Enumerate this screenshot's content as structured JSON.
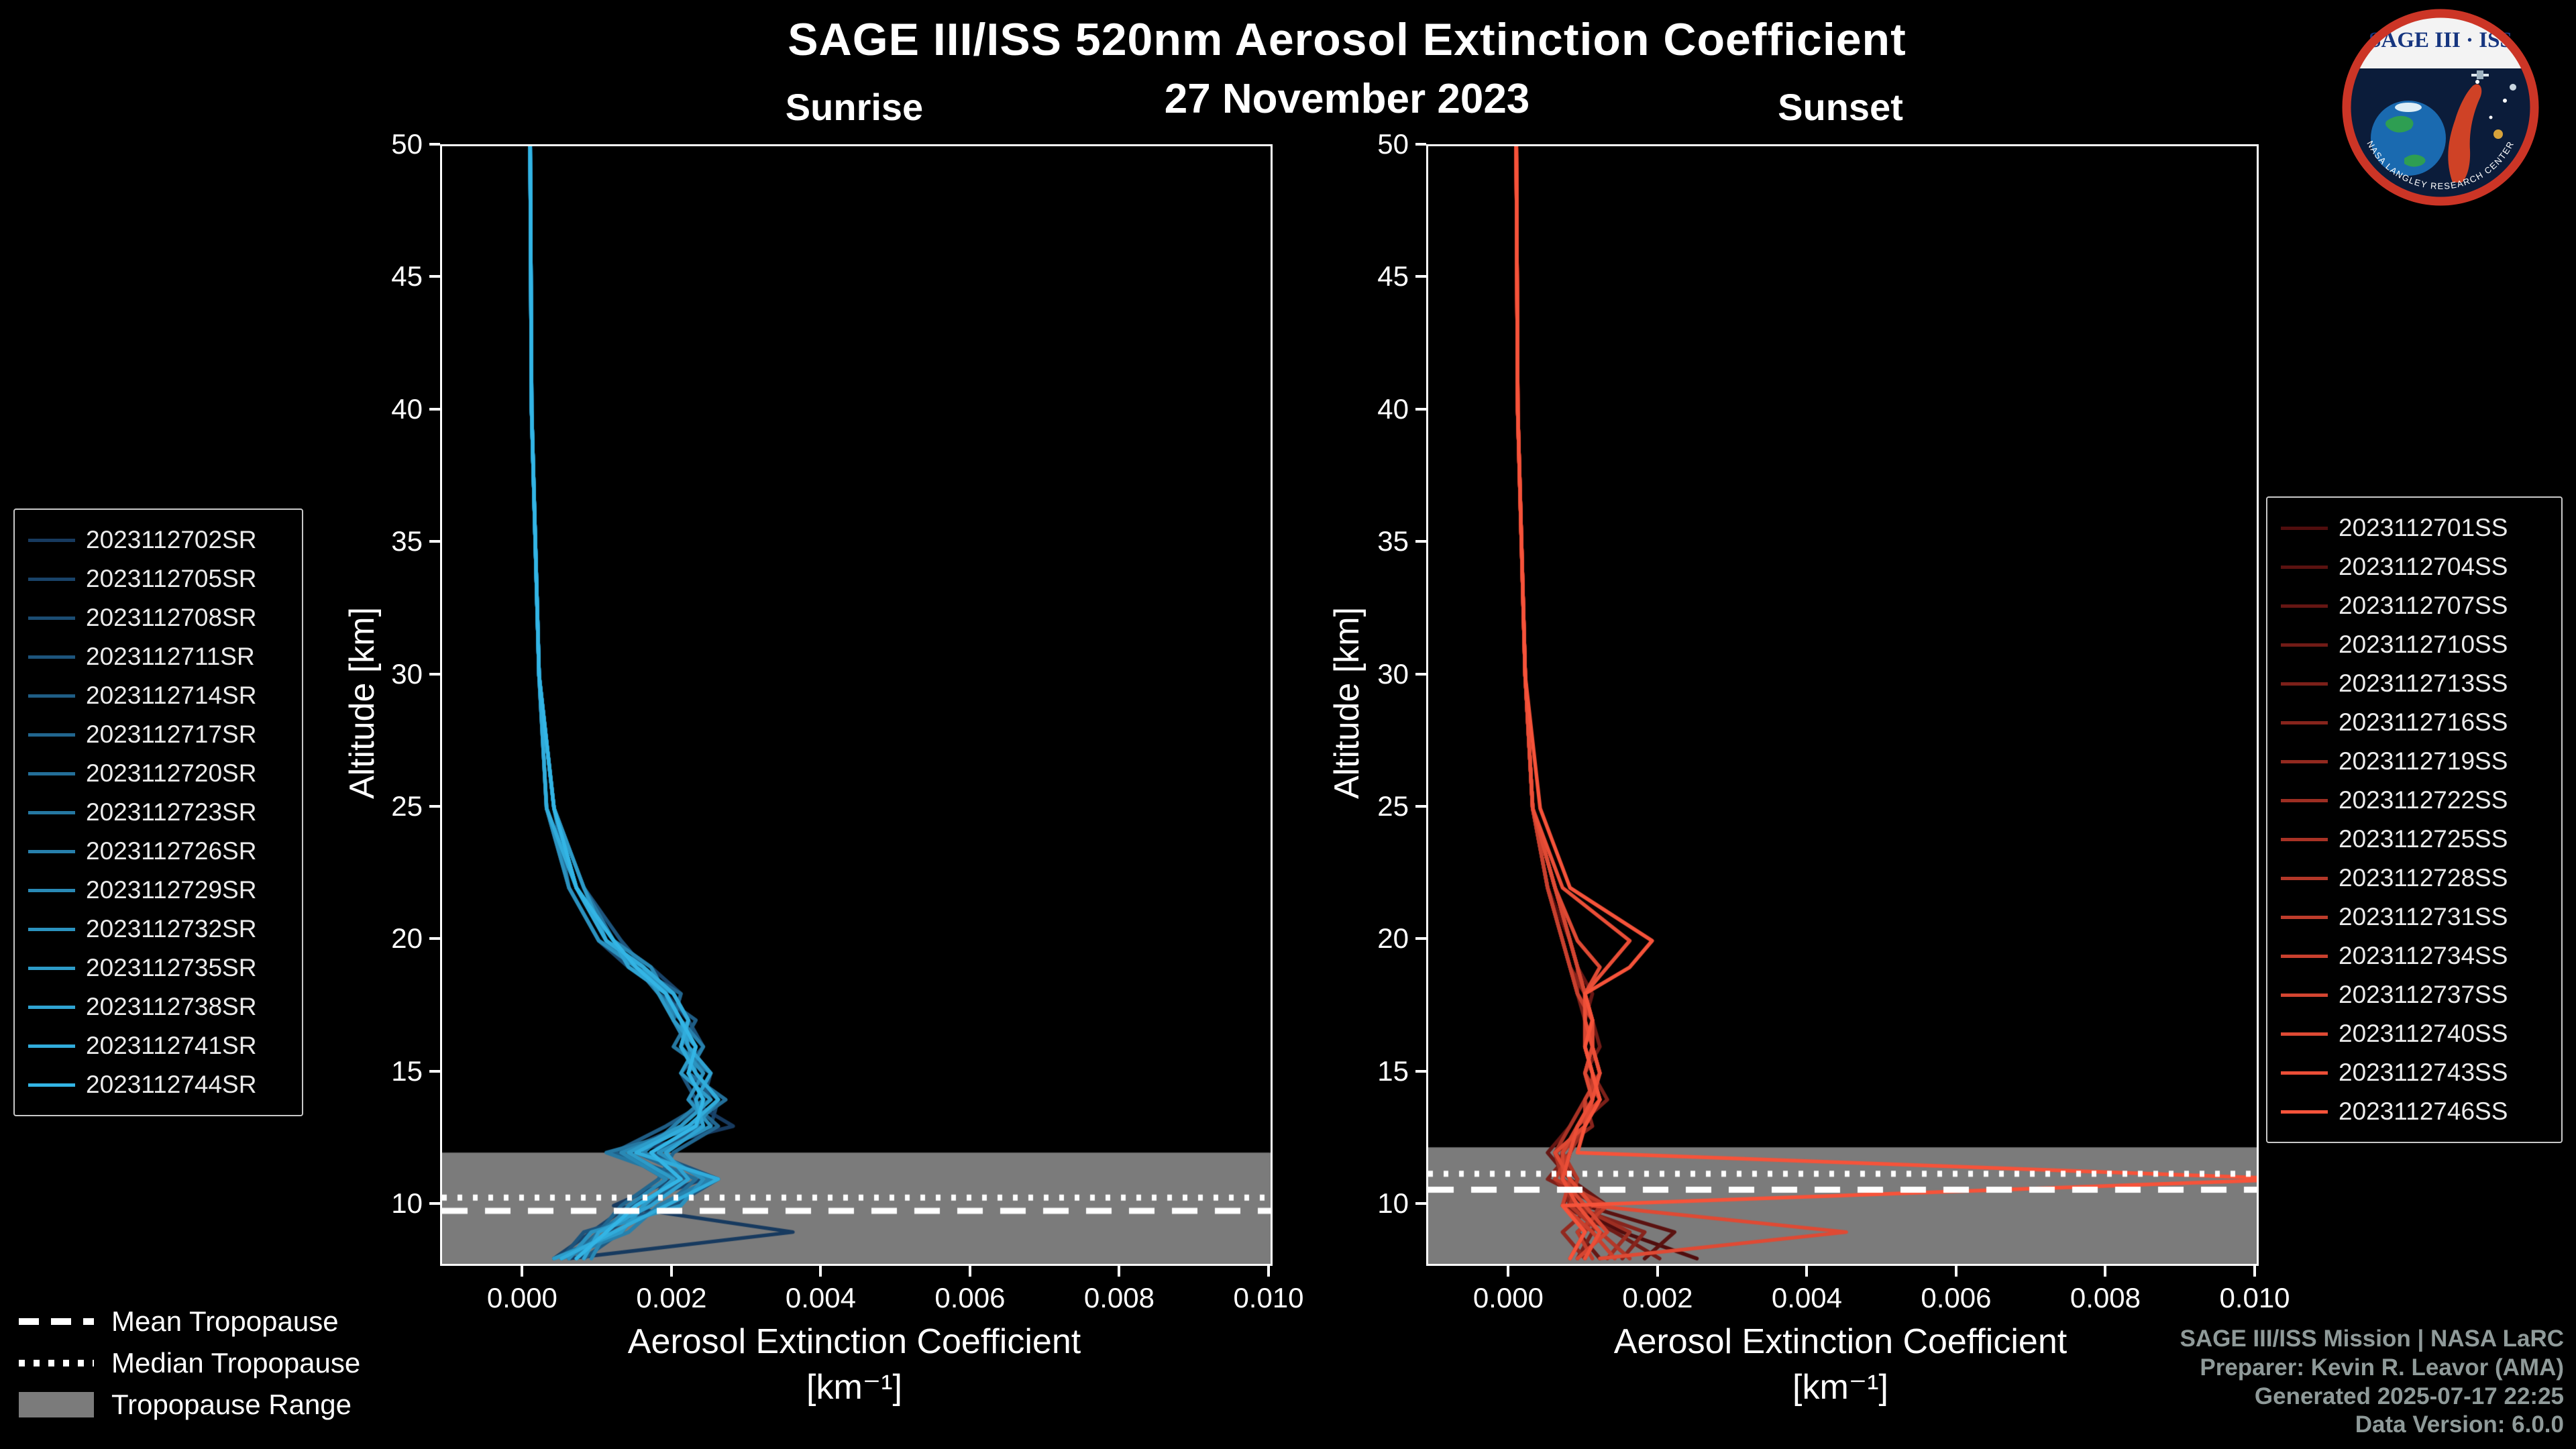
{
  "title": "SAGE III/ISS 520nm Aerosol Extinction Coefficient",
  "date": "27 November 2023",
  "logo": {
    "title": "SAGE III · ISS",
    "arc_text": "NASA LANGLEY RESEARCH CENTER"
  },
  "tropopause_legend": [
    {
      "label": "Mean Tropopause",
      "style": "dashed"
    },
    {
      "label": "Median Tropopause",
      "style": "dotted"
    },
    {
      "label": "Tropopause Range",
      "style": "band"
    }
  ],
  "footer": {
    "line1": "SAGE III/ISS Mission | NASA LaRC",
    "line2": "Preparer: Kevin R. Leavor (AMA)",
    "line3": "Generated 2025-07-17 22:25",
    "line4": "Data Version: 6.0.0"
  },
  "colors": {
    "background": "#000000",
    "axis": "#ffffff",
    "tropopause_band": "#7b7b7b",
    "tropopause_lines": "#ffffff",
    "muted_text": "#8f9a99"
  },
  "chart_data": [
    {
      "id": "sunrise",
      "type": "line",
      "title": "Sunrise",
      "xlabel_line1": "Aerosol Extinction Coefficient",
      "xlabel_line2": "[km⁻¹]",
      "ylabel": "Altitude [km]",
      "grid": false,
      "xlim": [
        -0.0011,
        0.01
      ],
      "ylim": [
        7.8,
        50
      ],
      "xticks": [
        0.0,
        0.002,
        0.004,
        0.006,
        0.008,
        0.01
      ],
      "xtick_labels": [
        "0.000",
        "0.002",
        "0.004",
        "0.006",
        "0.008",
        "0.010"
      ],
      "yticks": [
        10,
        15,
        20,
        25,
        30,
        35,
        40,
        45,
        50
      ],
      "ytick_labels": [
        "10",
        "15",
        "20",
        "25",
        "30",
        "35",
        "40",
        "45",
        "50"
      ],
      "tropopause": {
        "mean_km": 9.8,
        "median_km": 10.3,
        "range_km": [
          7.8,
          12.0
        ]
      },
      "altitudes_km": [
        8,
        9,
        10,
        11,
        12,
        13,
        14,
        15,
        16,
        17,
        18,
        19,
        20,
        22,
        25,
        30,
        40,
        50
      ],
      "series": [
        {
          "name": "2023112702SR",
          "color": "#173A5F",
          "values": [
            0.0006,
            0.0036,
            0.0012,
            0.002,
            0.0014,
            0.0028,
            0.0022,
            0.0024,
            0.0021,
            0.0022,
            0.0019,
            0.0015,
            0.0011,
            0.0007,
            0.0004,
            0.0002,
            0.0001,
            8e-05
          ]
        },
        {
          "name": "2023112705SR",
          "color": "#194369",
          "values": [
            0.0004,
            0.0009,
            0.0014,
            0.0024,
            0.0018,
            0.0025,
            0.0026,
            0.0022,
            0.0023,
            0.002,
            0.0021,
            0.0017,
            0.0012,
            0.0008,
            0.0004,
            0.0002,
            0.0001,
            8e-05
          ]
        },
        {
          "name": "2023112708SR",
          "color": "#1B4C72",
          "values": [
            0.0007,
            0.0011,
            0.0017,
            0.0019,
            0.0013,
            0.0021,
            0.0024,
            0.0025,
            0.0022,
            0.0021,
            0.0019,
            0.0014,
            0.001,
            0.0006,
            0.0003,
            0.0002,
            0.0001,
            8e-05
          ]
        },
        {
          "name": "2023112711SR",
          "color": "#1D547C",
          "values": [
            0.0005,
            0.0008,
            0.002,
            0.0026,
            0.0017,
            0.0024,
            0.0023,
            0.0021,
            0.0024,
            0.0022,
            0.002,
            0.0016,
            0.0013,
            0.0008,
            0.0004,
            0.0002,
            0.0001,
            8e-05
          ]
        },
        {
          "name": "2023112714SR",
          "color": "#1F5D85",
          "values": [
            0.0008,
            0.0013,
            0.0016,
            0.0022,
            0.0012,
            0.0019,
            0.0025,
            0.0023,
            0.0021,
            0.0023,
            0.0018,
            0.0015,
            0.0011,
            0.0007,
            0.0004,
            0.0002,
            0.0001,
            8e-05
          ]
        },
        {
          "name": "2023112717SR",
          "color": "#21668F",
          "values": [
            0.0006,
            0.001,
            0.0013,
            0.0018,
            0.002,
            0.0026,
            0.0022,
            0.0024,
            0.0022,
            0.002,
            0.0021,
            0.0015,
            0.0012,
            0.0007,
            0.0003,
            0.0002,
            0.0001,
            8e-05
          ]
        },
        {
          "name": "2023112720SR",
          "color": "#236F99",
          "values": [
            0.0004,
            0.0012,
            0.0019,
            0.0023,
            0.0015,
            0.0022,
            0.0027,
            0.0022,
            0.0023,
            0.0021,
            0.0019,
            0.0016,
            0.001,
            0.0006,
            0.0004,
            0.0002,
            0.0001,
            8e-05
          ]
        },
        {
          "name": "2023112723SR",
          "color": "#2578A2",
          "values": [
            0.0007,
            0.001,
            0.0015,
            0.0021,
            0.0011,
            0.0024,
            0.0023,
            0.0025,
            0.002,
            0.0022,
            0.002,
            0.0014,
            0.0012,
            0.0008,
            0.0004,
            0.0002,
            0.0001,
            8e-05
          ]
        },
        {
          "name": "2023112726SR",
          "color": "#2780AC",
          "values": [
            0.0005,
            0.0014,
            0.0018,
            0.0025,
            0.0016,
            0.002,
            0.0024,
            0.0022,
            0.0024,
            0.0021,
            0.0018,
            0.0015,
            0.0011,
            0.0007,
            0.0003,
            0.0002,
            0.0001,
            8e-05
          ]
        },
        {
          "name": "2023112729SR",
          "color": "#2989B5",
          "values": [
            0.0009,
            0.0011,
            0.0014,
            0.0019,
            0.0013,
            0.0023,
            0.0026,
            0.0023,
            0.0022,
            0.002,
            0.0019,
            0.0017,
            0.0012,
            0.0007,
            0.0004,
            0.0002,
            0.0001,
            8e-05
          ]
        },
        {
          "name": "2023112732SR",
          "color": "#2B92BF",
          "values": [
            0.0006,
            0.0009,
            0.0021,
            0.0024,
            0.0018,
            0.0025,
            0.0022,
            0.0024,
            0.0021,
            0.0022,
            0.002,
            0.0015,
            0.001,
            0.0006,
            0.0003,
            0.0002,
            0.0001,
            8e-05
          ]
        },
        {
          "name": "2023112735SR",
          "color": "#2D9BC8",
          "values": [
            0.0004,
            0.0013,
            0.0016,
            0.002,
            0.0014,
            0.0021,
            0.0025,
            0.0021,
            0.0023,
            0.002,
            0.0018,
            0.0016,
            0.0011,
            0.0008,
            0.0004,
            0.0002,
            0.0001,
            8e-05
          ]
        },
        {
          "name": "2023112738SR",
          "color": "#2FA3D2",
          "values": [
            0.0008,
            0.001,
            0.0017,
            0.0022,
            0.0019,
            0.0024,
            0.0023,
            0.0025,
            0.0022,
            0.0021,
            0.0019,
            0.0014,
            0.0012,
            0.0007,
            0.0004,
            0.0002,
            0.0001,
            8e-05
          ]
        },
        {
          "name": "2023112741SR",
          "color": "#31ACDB",
          "values": [
            0.0005,
            0.0012,
            0.0019,
            0.0026,
            0.0015,
            0.0022,
            0.0026,
            0.0023,
            0.0021,
            0.0022,
            0.002,
            0.0016,
            0.0011,
            0.0007,
            0.0003,
            0.0002,
            0.0001,
            8e-05
          ]
        },
        {
          "name": "2023112744SR",
          "color": "#33B5E5",
          "values": [
            0.0007,
            0.0011,
            0.0015,
            0.0021,
            0.0017,
            0.0023,
            0.0024,
            0.0022,
            0.0023,
            0.0021,
            0.0019,
            0.0015,
            0.0012,
            0.0007,
            0.0004,
            0.0002,
            0.0001,
            8e-05
          ]
        }
      ]
    },
    {
      "id": "sunset",
      "type": "line",
      "title": "Sunset",
      "xlabel_line1": "Aerosol Extinction Coefficient",
      "xlabel_line2": "[km⁻¹]",
      "ylabel": "Altitude [km]",
      "grid": false,
      "xlim": [
        -0.0011,
        0.01
      ],
      "ylim": [
        7.8,
        50
      ],
      "xticks": [
        0.0,
        0.002,
        0.004,
        0.006,
        0.008,
        0.01
      ],
      "xtick_labels": [
        "0.000",
        "0.002",
        "0.004",
        "0.006",
        "0.008",
        "0.010"
      ],
      "yticks": [
        10,
        15,
        20,
        25,
        30,
        35,
        40,
        45,
        50
      ],
      "ytick_labels": [
        "10",
        "15",
        "20",
        "25",
        "30",
        "35",
        "40",
        "45",
        "50"
      ],
      "tropopause": {
        "mean_km": 10.6,
        "median_km": 11.2,
        "range_km": [
          7.8,
          12.2
        ]
      },
      "altitudes_km": [
        8,
        9,
        10,
        11,
        12,
        13,
        14,
        15,
        16,
        17,
        18,
        19,
        20,
        22,
        25,
        30,
        40,
        50
      ],
      "series": [
        {
          "name": "2023112701SS",
          "color": "#500D0D",
          "values": [
            0.0025,
            0.0015,
            0.0008,
            0.0007,
            0.0008,
            0.001,
            0.0011,
            0.001,
            0.0011,
            0.001,
            0.001,
            0.0009,
            0.0008,
            0.0005,
            0.0003,
            0.0002,
            0.0001,
            8e-05
          ]
        },
        {
          "name": "2023112704SS",
          "color": "#5B1210",
          "values": [
            0.0018,
            0.0022,
            0.001,
            0.0006,
            0.0007,
            0.0009,
            0.0012,
            0.0011,
            0.001,
            0.0011,
            0.0009,
            0.0008,
            0.0007,
            0.0005,
            0.0003,
            0.0002,
            0.0001,
            8e-05
          ]
        },
        {
          "name": "2023112707SS",
          "color": "#661613",
          "values": [
            0.0012,
            0.0009,
            0.0013,
            0.0008,
            0.0005,
            0.0008,
            0.001,
            0.0012,
            0.0011,
            0.001,
            0.0011,
            0.0009,
            0.0008,
            0.0006,
            0.0003,
            0.0002,
            0.0001,
            8e-05
          ]
        },
        {
          "name": "2023112710SS",
          "color": "#711B16",
          "values": [
            0.002,
            0.0014,
            0.0007,
            0.0009,
            0.0006,
            0.001,
            0.0011,
            0.001,
            0.0012,
            0.0011,
            0.001,
            0.0008,
            0.0007,
            0.0005,
            0.0003,
            0.0002,
            0.0001,
            8e-05
          ]
        },
        {
          "name": "2023112713SS",
          "color": "#7C2019",
          "values": [
            0.0009,
            0.0011,
            0.0012,
            0.0005,
            0.0008,
            0.0009,
            0.0013,
            0.0011,
            0.001,
            0.001,
            0.0009,
            0.0009,
            0.0008,
            0.0006,
            0.0003,
            0.0002,
            0.0001,
            8e-05
          ]
        },
        {
          "name": "2023112716SS",
          "color": "#87241C",
          "values": [
            0.0015,
            0.0018,
            0.0008,
            0.0007,
            0.0006,
            0.0011,
            0.001,
            0.0012,
            0.0011,
            0.0011,
            0.001,
            0.0008,
            0.0007,
            0.0005,
            0.0003,
            0.0002,
            0.0001,
            8e-05
          ]
        },
        {
          "name": "2023112719SS",
          "color": "#92291F",
          "values": [
            0.001,
            0.0007,
            0.0011,
            0.0008,
            0.0007,
            0.0009,
            0.0012,
            0.001,
            0.0011,
            0.001,
            0.001,
            0.0009,
            0.0008,
            0.0006,
            0.0003,
            0.0002,
            0.0001,
            8e-05
          ]
        },
        {
          "name": "2023112722SS",
          "color": "#9D2E22",
          "values": [
            0.0013,
            0.0016,
            0.0009,
            0.0006,
            0.0008,
            0.001,
            0.0011,
            0.0011,
            0.001,
            0.0011,
            0.0009,
            0.0008,
            0.0007,
            0.0005,
            0.0003,
            0.0002,
            0.0001,
            8e-05
          ]
        },
        {
          "name": "2023112725SS",
          "color": "#A83225",
          "values": [
            0.0008,
            0.001,
            0.0012,
            0.0007,
            0.0006,
            0.0008,
            0.001,
            0.0012,
            0.0011,
            0.001,
            0.001,
            0.0009,
            0.0008,
            0.0006,
            0.0003,
            0.0002,
            0.0001,
            8e-05
          ]
        },
        {
          "name": "2023112728SS",
          "color": "#B33728",
          "values": [
            0.0016,
            0.0012,
            0.0008,
            0.0009,
            0.0007,
            0.001,
            0.0012,
            0.001,
            0.0011,
            0.0011,
            0.0009,
            0.0008,
            0.0007,
            0.0005,
            0.0003,
            0.0002,
            0.0001,
            8e-05
          ]
        },
        {
          "name": "2023112731SS",
          "color": "#BE3C2B",
          "values": [
            0.0011,
            0.0009,
            0.0013,
            0.0006,
            0.0008,
            0.0009,
            0.0011,
            0.0011,
            0.001,
            0.001,
            0.001,
            0.0009,
            0.0008,
            0.0006,
            0.0003,
            0.0002,
            0.0001,
            8e-05
          ]
        },
        {
          "name": "2023112734SS",
          "color": "#C9402E",
          "values": [
            0.0014,
            0.0011,
            0.0007,
            0.0008,
            0.0006,
            0.001,
            0.001,
            0.0012,
            0.0011,
            0.0011,
            0.0009,
            0.0008,
            0.0007,
            0.0005,
            0.0003,
            0.0002,
            0.0001,
            8e-05
          ]
        },
        {
          "name": "2023112737SS",
          "color": "#D44531",
          "values": [
            0.0009,
            0.0013,
            0.001,
            0.0007,
            0.0007,
            0.0009,
            0.0012,
            0.0011,
            0.001,
            0.001,
            0.001,
            0.0009,
            0.0008,
            0.0006,
            0.0003,
            0.0002,
            0.0001,
            8e-05
          ]
        },
        {
          "name": "2023112740SS",
          "color": "#DF4A34",
          "values": [
            0.0012,
            0.0045,
            0.0011,
            0.0008,
            0.0006,
            0.001,
            0.0011,
            0.001,
            0.0011,
            0.0011,
            0.001,
            0.0012,
            0.0009,
            0.0006,
            0.0003,
            0.0002,
            0.0001,
            8e-05
          ]
        },
        {
          "name": "2023112743SS",
          "color": "#EB4E37",
          "values": [
            0.001,
            0.0012,
            0.0009,
            0.0007,
            0.0008,
            0.0009,
            0.0011,
            0.0012,
            0.0011,
            0.001,
            0.001,
            0.0013,
            0.0016,
            0.0007,
            0.0003,
            0.0002,
            0.0001,
            8e-05
          ]
        },
        {
          "name": "2023112746SS",
          "color": "#F6533A",
          "values": [
            0.0008,
            0.001,
            0.0007,
            0.0105,
            0.0009,
            0.001,
            0.0012,
            0.0011,
            0.001,
            0.0011,
            0.001,
            0.0016,
            0.0019,
            0.0008,
            0.0004,
            0.0002,
            0.0001,
            8e-05
          ]
        }
      ]
    }
  ]
}
